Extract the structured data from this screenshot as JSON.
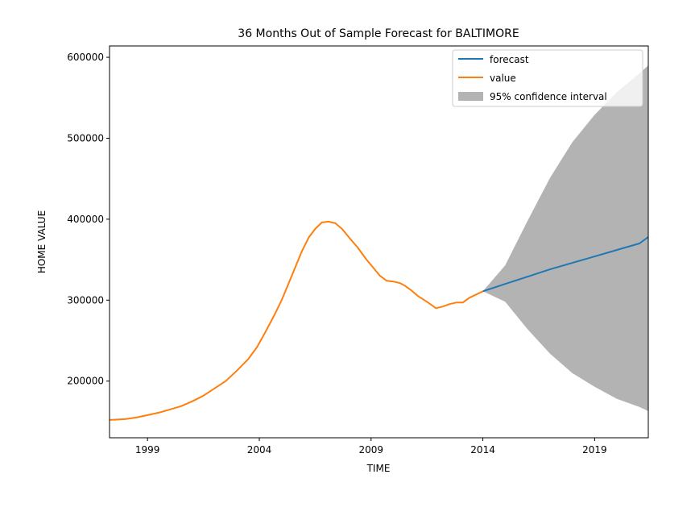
{
  "chart_data": {
    "type": "line",
    "title": "36 Months Out of Sample Forecast for BALTIMORE",
    "xlabel": "TIME",
    "ylabel": "HOME VALUE",
    "xlim": [
      1997.3,
      2021.4
    ],
    "ylim": [
      130000,
      614000
    ],
    "x_ticks": [
      1999,
      2004,
      2009,
      2014,
      2019
    ],
    "y_ticks": [
      200000,
      300000,
      400000,
      500000,
      600000
    ],
    "grid": false,
    "legend_position": "top-right",
    "legend": [
      {
        "label": "forecast",
        "kind": "line",
        "color": "#1f77b4"
      },
      {
        "label": "value",
        "kind": "line",
        "color": "#ff7f0e"
      },
      {
        "label": "95% confidence interval",
        "kind": "patch",
        "color": "#999999"
      }
    ],
    "series": [
      {
        "name": "value",
        "color": "#ff7f0e",
        "x": [
          1997.3,
          1998.0,
          1998.5,
          1999.0,
          1999.5,
          2000.0,
          2000.5,
          2001.0,
          2001.5,
          2002.0,
          2002.5,
          2003.0,
          2003.5,
          2003.9,
          2004.3,
          2004.7,
          2005.0,
          2005.3,
          2005.6,
          2005.9,
          2006.2,
          2006.5,
          2006.8,
          2007.1,
          2007.4,
          2007.7,
          2008.0,
          2008.4,
          2008.8,
          2009.1,
          2009.4,
          2009.7,
          2010.0,
          2010.3,
          2010.5,
          2010.8,
          2011.1,
          2011.5,
          2011.9,
          2012.2,
          2012.5,
          2012.8,
          2013.1,
          2013.4,
          2013.7,
          2014.0
        ],
        "y": [
          152000,
          153000,
          155000,
          158000,
          161000,
          165000,
          169000,
          175000,
          182000,
          191000,
          200000,
          213000,
          227000,
          242000,
          262000,
          283000,
          300000,
          320000,
          340000,
          360000,
          377000,
          388000,
          396000,
          397000,
          395000,
          388000,
          378000,
          365000,
          350000,
          340000,
          330000,
          324000,
          323000,
          321000,
          318000,
          312000,
          305000,
          298000,
          290000,
          292000,
          295000,
          297000,
          297000,
          303000,
          307000,
          311000
        ]
      },
      {
        "name": "forecast",
        "color": "#1f77b4",
        "x": [
          2014.0,
          2015.0,
          2016.0,
          2017.0,
          2018.0,
          2019.0,
          2020.0,
          2021.0,
          2021.4
        ],
        "y": [
          311000,
          320000,
          329000,
          338000,
          346000,
          354000,
          362000,
          370000,
          378000
        ]
      }
    ],
    "confidence_interval": {
      "label": "95% confidence interval",
      "color": "#999999",
      "x": [
        2014.0,
        2015.0,
        2016.0,
        2017.0,
        2018.0,
        2019.0,
        2020.0,
        2021.0,
        2021.4
      ],
      "upper": [
        311000,
        343000,
        398000,
        451000,
        495000,
        529000,
        557000,
        580000,
        590000
      ],
      "lower": [
        311000,
        298000,
        264000,
        234000,
        210000,
        193000,
        178000,
        168000,
        163000
      ]
    }
  }
}
